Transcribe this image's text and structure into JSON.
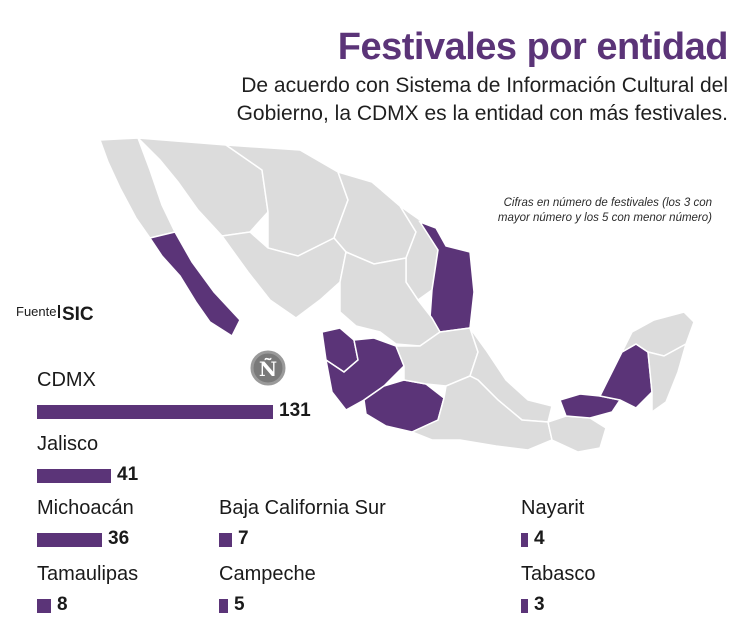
{
  "title": "Festivales por entidad",
  "subtitle": "De acuerdo con Sistema de Información Cultural del Gobierno, la CDMX es la entidad con más festivales.",
  "note": "Cifras en número de festivales (los 3 con mayor número y los 5 con menor número)",
  "source": {
    "label": "Fuente",
    "value": "SIC"
  },
  "logo": "Ñ",
  "colors": {
    "accent": "#5b3478",
    "map_base": "#dcdcdc",
    "map_border": "#ffffff"
  },
  "chart_data": {
    "type": "bar",
    "orientation": "horizontal",
    "categories": [
      "CDMX",
      "Jalisco",
      "Michoacán",
      "Tamaulipas",
      "Baja California Sur",
      "Campeche",
      "Nayarit",
      "Tabasco"
    ],
    "values": [
      131,
      41,
      36,
      8,
      7,
      5,
      4,
      3
    ],
    "data_labels": [
      "131",
      "41",
      "36",
      "8",
      "7",
      "5",
      "4",
      "3"
    ],
    "highlighted_states": [
      "CDMX",
      "Jalisco",
      "Michoacán",
      "Tamaulipas",
      "Baja California Sur",
      "Campeche",
      "Nayarit",
      "Tabasco"
    ]
  }
}
